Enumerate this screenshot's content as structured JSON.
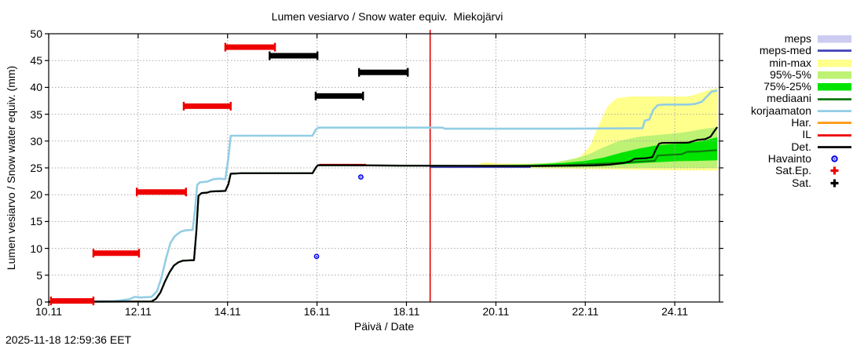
{
  "chart_data": {
    "type": "line",
    "title": "Lumen vesiarvo / Snow water equiv.  Miekojärvi",
    "xlabel": "Päivä / Date",
    "ylabel": "Lumen vesiarvo / Snow water equiv. (mm)",
    "timestamp": "2025-11-18 12:59:36 EET",
    "xlim_days": [
      10,
      25
    ],
    "ylim": [
      0,
      50
    ],
    "grid": true,
    "legend_position": "right",
    "now_line_day": 18.53,
    "colors": {
      "now_line": "#dd0000",
      "grid": "#a9a9a9",
      "frame": "#000000"
    },
    "x_ticks": [
      {
        "day": 10,
        "label": "10.11"
      },
      {
        "day": 12,
        "label": "12.11"
      },
      {
        "day": 14,
        "label": "14.11"
      },
      {
        "day": 16,
        "label": "16.11"
      },
      {
        "day": 18,
        "label": "18.11"
      },
      {
        "day": 20,
        "label": "20.11"
      },
      {
        "day": 22,
        "label": "22.11"
      },
      {
        "day": 24,
        "label": "24.11"
      }
    ],
    "y_ticks": [
      {
        "value": 0,
        "label": "0"
      },
      {
        "value": 5,
        "label": "5"
      },
      {
        "value": 10,
        "label": "10"
      },
      {
        "value": 15,
        "label": "15"
      },
      {
        "value": 20,
        "label": "20"
      },
      {
        "value": 25,
        "label": "25"
      },
      {
        "value": 30,
        "label": "30"
      },
      {
        "value": 35,
        "label": "35"
      },
      {
        "value": 40,
        "label": "40"
      },
      {
        "value": 45,
        "label": "45"
      },
      {
        "value": 50,
        "label": "50"
      }
    ],
    "bands": [
      {
        "name": "min-max",
        "color": "#ffff8c",
        "top": [
          [
            18.53,
            25.5
          ],
          [
            19.6,
            25.6
          ],
          [
            19.7,
            26.0
          ],
          [
            19.9,
            26.0
          ],
          [
            20.0,
            25.8
          ],
          [
            21.3,
            25.8
          ],
          [
            21.6,
            26.3
          ],
          [
            21.9,
            27.2
          ],
          [
            22.1,
            29.0
          ],
          [
            22.3,
            33.0
          ],
          [
            22.5,
            36.5
          ],
          [
            22.7,
            38.0
          ],
          [
            23.0,
            38.3
          ],
          [
            24.3,
            38.3
          ],
          [
            24.55,
            38.9
          ],
          [
            24.8,
            39.6
          ],
          [
            24.95,
            39.8
          ]
        ],
        "bottom": [
          [
            18.53,
            25.1
          ],
          [
            20.5,
            24.95
          ],
          [
            22.0,
            24.8
          ],
          [
            23.0,
            24.65
          ],
          [
            24.0,
            24.55
          ],
          [
            24.95,
            24.5
          ]
        ]
      },
      {
        "name": "meps",
        "color": "#ccccf2",
        "top": [
          [
            18.53,
            25.2
          ],
          [
            20.78,
            25.2
          ]
        ],
        "bottom": [
          [
            18.53,
            24.95
          ],
          [
            20.78,
            24.95
          ]
        ]
      },
      {
        "name": "95%-5%",
        "color": "#bdf275",
        "top": [
          [
            18.53,
            25.45
          ],
          [
            19.6,
            25.55
          ],
          [
            20.6,
            25.7
          ],
          [
            21.3,
            26.0
          ],
          [
            21.8,
            26.8
          ],
          [
            22.1,
            27.6
          ],
          [
            22.4,
            28.8
          ],
          [
            22.75,
            30.0
          ],
          [
            23.2,
            30.8
          ],
          [
            23.7,
            31.2
          ],
          [
            24.2,
            31.6
          ],
          [
            24.6,
            32.2
          ],
          [
            24.95,
            32.6
          ]
        ],
        "bottom": [
          [
            18.53,
            25.15
          ],
          [
            20.5,
            25.1
          ],
          [
            22.5,
            25.05
          ],
          [
            24.95,
            25.0
          ]
        ]
      },
      {
        "name": "75%-25%",
        "color": "#00e400",
        "top": [
          [
            18.53,
            25.4
          ],
          [
            19.6,
            25.5
          ],
          [
            20.8,
            25.6
          ],
          [
            21.5,
            25.9
          ],
          [
            22.0,
            26.3
          ],
          [
            22.4,
            26.9
          ],
          [
            22.8,
            27.8
          ],
          [
            23.2,
            28.6
          ],
          [
            23.6,
            29.2
          ],
          [
            23.9,
            29.4
          ],
          [
            24.3,
            29.6
          ],
          [
            24.6,
            30.0
          ],
          [
            24.8,
            30.4
          ],
          [
            24.95,
            30.7
          ]
        ],
        "bottom": [
          [
            18.53,
            25.25
          ],
          [
            20.5,
            25.2
          ],
          [
            21.8,
            25.25
          ],
          [
            22.4,
            25.4
          ],
          [
            22.9,
            25.7
          ],
          [
            23.3,
            25.9
          ],
          [
            23.7,
            26.1
          ],
          [
            24.1,
            26.25
          ],
          [
            24.5,
            26.3
          ],
          [
            24.95,
            26.4
          ]
        ]
      }
    ],
    "lines": [
      {
        "name": "IL",
        "color": "#ee0000",
        "width": 2,
        "points": [
          [
            16.05,
            25.6
          ],
          [
            17.1,
            25.6
          ]
        ]
      },
      {
        "name": "meps-med",
        "color": "#4444bb",
        "width": 2,
        "points": [
          [
            18.53,
            25.15
          ],
          [
            20.78,
            25.15
          ]
        ]
      },
      {
        "name": "mediaani",
        "color": "#0f7a0f",
        "width": 2.2,
        "points": [
          [
            10,
            0.05
          ],
          [
            12.3,
            0.1
          ],
          [
            12.4,
            0.6
          ],
          [
            12.5,
            1.8
          ],
          [
            12.6,
            3.8
          ],
          [
            12.7,
            5.5
          ],
          [
            12.8,
            6.8
          ],
          [
            12.9,
            7.4
          ],
          [
            13.0,
            7.7
          ],
          [
            13.25,
            7.8
          ],
          [
            13.3,
            13
          ],
          [
            13.35,
            19.8
          ],
          [
            13.42,
            20.3
          ],
          [
            13.55,
            20.4
          ],
          [
            13.62,
            20.6
          ],
          [
            13.95,
            20.7
          ],
          [
            14.02,
            22
          ],
          [
            14.07,
            23.9
          ],
          [
            14.3,
            24
          ],
          [
            15.9,
            24
          ],
          [
            15.97,
            25
          ],
          [
            16.02,
            25.5
          ],
          [
            16.6,
            25.5
          ],
          [
            17.2,
            25.45
          ],
          [
            18.53,
            25.4
          ],
          [
            20.5,
            25.35
          ],
          [
            21.5,
            25.5
          ],
          [
            22.3,
            25.75
          ],
          [
            22.9,
            26.0
          ],
          [
            23.3,
            26.2
          ],
          [
            23.55,
            26.3
          ],
          [
            23.62,
            27.3
          ],
          [
            23.95,
            27.45
          ],
          [
            24.15,
            27.55
          ],
          [
            24.28,
            28.0
          ],
          [
            24.55,
            28.05
          ],
          [
            24.75,
            28.2
          ],
          [
            24.95,
            28.3
          ]
        ]
      },
      {
        "name": "korjaamaton",
        "color": "#93cde4",
        "width": 2.6,
        "points": [
          [
            10,
            0.1
          ],
          [
            11.45,
            0.15
          ],
          [
            11.8,
            0.5
          ],
          [
            11.92,
            0.95
          ],
          [
            12.05,
            0.85
          ],
          [
            12.3,
            0.95
          ],
          [
            12.42,
            2.0
          ],
          [
            12.52,
            4.5
          ],
          [
            12.62,
            8.0
          ],
          [
            12.72,
            11.0
          ],
          [
            12.82,
            12.3
          ],
          [
            12.95,
            13.1
          ],
          [
            13.05,
            13.35
          ],
          [
            13.22,
            13.45
          ],
          [
            13.27,
            17
          ],
          [
            13.32,
            21.8
          ],
          [
            13.38,
            22.3
          ],
          [
            13.55,
            22.45
          ],
          [
            13.68,
            22.9
          ],
          [
            13.82,
            23.0
          ],
          [
            13.95,
            22.9
          ],
          [
            14.02,
            27
          ],
          [
            14.07,
            31.0
          ],
          [
            15.9,
            31.0
          ],
          [
            15.97,
            32.1
          ],
          [
            16.03,
            32.5
          ],
          [
            18.8,
            32.5
          ],
          [
            18.87,
            32.3
          ],
          [
            21.5,
            32.3
          ],
          [
            23.28,
            32.4
          ],
          [
            23.33,
            33.8
          ],
          [
            23.43,
            34.0
          ],
          [
            23.52,
            35.8
          ],
          [
            23.62,
            36.7
          ],
          [
            23.75,
            36.8
          ],
          [
            24.28,
            36.8
          ],
          [
            24.45,
            36.9
          ],
          [
            24.6,
            37.3
          ],
          [
            24.72,
            38.3
          ],
          [
            24.82,
            39.2
          ],
          [
            24.95,
            39.4
          ]
        ]
      },
      {
        "name": "Det.",
        "color": "#000000",
        "width": 2.2,
        "points": [
          [
            10,
            0.05
          ],
          [
            12.3,
            0.1
          ],
          [
            12.4,
            0.6
          ],
          [
            12.5,
            1.8
          ],
          [
            12.6,
            3.8
          ],
          [
            12.7,
            5.5
          ],
          [
            12.8,
            6.8
          ],
          [
            12.9,
            7.4
          ],
          [
            13.0,
            7.7
          ],
          [
            13.25,
            7.8
          ],
          [
            13.3,
            13
          ],
          [
            13.35,
            19.8
          ],
          [
            13.42,
            20.3
          ],
          [
            13.55,
            20.4
          ],
          [
            13.62,
            20.6
          ],
          [
            13.95,
            20.7
          ],
          [
            14.02,
            22
          ],
          [
            14.07,
            23.9
          ],
          [
            14.3,
            24
          ],
          [
            15.9,
            24
          ],
          [
            15.97,
            25
          ],
          [
            16.02,
            25.5
          ],
          [
            16.6,
            25.5
          ],
          [
            17.2,
            25.45
          ],
          [
            18.53,
            25.4
          ],
          [
            21.0,
            25.35
          ],
          [
            22.2,
            25.45
          ],
          [
            22.55,
            25.6
          ],
          [
            22.85,
            25.9
          ],
          [
            23.0,
            26.2
          ],
          [
            23.1,
            26.7
          ],
          [
            23.35,
            26.8
          ],
          [
            23.5,
            27.0
          ],
          [
            23.58,
            28.5
          ],
          [
            23.65,
            29.5
          ],
          [
            23.72,
            29.65
          ],
          [
            24.3,
            29.7
          ],
          [
            24.5,
            30.2
          ],
          [
            24.68,
            30.35
          ],
          [
            24.8,
            30.8
          ],
          [
            24.88,
            31.8
          ],
          [
            24.95,
            32.6
          ]
        ]
      }
    ],
    "bars": [
      {
        "series": "Sat.Ep.",
        "color": "#ee0000",
        "value": 0.2,
        "start_day": 10.05,
        "end_day": 11.0
      },
      {
        "series": "Sat.Ep.",
        "color": "#ee0000",
        "value": 9.1,
        "start_day": 11.0,
        "end_day": 12.02
      },
      {
        "series": "Sat.Ep.",
        "color": "#ee0000",
        "value": 20.5,
        "start_day": 11.97,
        "end_day": 13.07
      },
      {
        "series": "Sat.Ep.",
        "color": "#ee0000",
        "value": 36.5,
        "start_day": 13.02,
        "end_day": 14.07
      },
      {
        "series": "Sat.Ep.",
        "color": "#ee0000",
        "value": 47.5,
        "start_day": 13.95,
        "end_day": 15.06
      },
      {
        "series": "Sat.",
        "color": "#000000",
        "value": 45.9,
        "start_day": 14.94,
        "end_day": 16.01
      },
      {
        "series": "Sat.",
        "color": "#000000",
        "value": 38.4,
        "start_day": 15.97,
        "end_day": 17.03
      },
      {
        "series": "Sat.",
        "color": "#000000",
        "value": 42.8,
        "start_day": 16.94,
        "end_day": 18.03
      }
    ],
    "markers": [
      {
        "series": "Havainto",
        "color": "#0000ee",
        "day": 15.99,
        "value": 8.5
      },
      {
        "series": "Havainto",
        "color": "#0000ee",
        "day": 16.98,
        "value": 23.3
      }
    ],
    "legend": [
      {
        "label": "meps",
        "type": "band",
        "color": "#ccccf2"
      },
      {
        "label": "meps-med",
        "type": "line",
        "color": "#4444bb"
      },
      {
        "label": "min-max",
        "type": "band",
        "color": "#ffff8c"
      },
      {
        "label": "95%-5%",
        "type": "band",
        "color": "#bdf275"
      },
      {
        "label": "75%-25%",
        "type": "band",
        "color": "#00e400"
      },
      {
        "label": "mediaani",
        "type": "line",
        "color": "#0f7a0f"
      },
      {
        "label": "korjaamaton",
        "type": "line",
        "color": "#93cde4"
      },
      {
        "label": "Har.",
        "type": "line",
        "color": "#ff9911"
      },
      {
        "label": "IL",
        "type": "line",
        "color": "#ee0000"
      },
      {
        "label": "Det.",
        "type": "line",
        "color": "#000000"
      },
      {
        "label": "Havainto",
        "type": "circle",
        "color": "#0000ee"
      },
      {
        "label": "Sat.Ep.",
        "type": "plus",
        "color": "#ee0000"
      },
      {
        "label": "Sat.",
        "type": "plus",
        "color": "#000000"
      }
    ]
  }
}
